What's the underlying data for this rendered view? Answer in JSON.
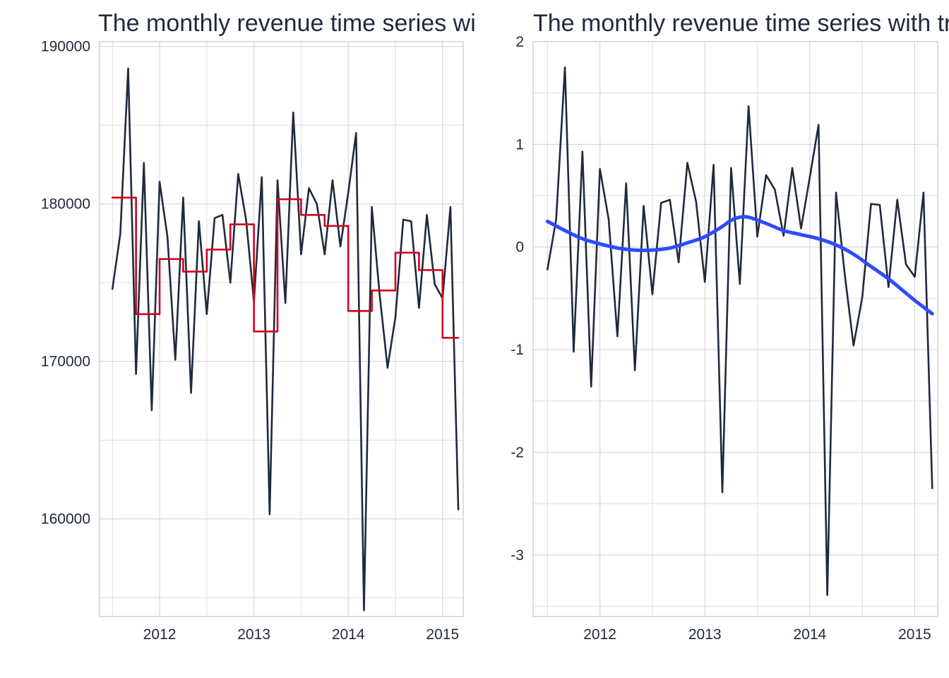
{
  "chart_data": [
    {
      "type": "line",
      "title": "The monthly revenue time series with moving average",
      "xlabel": "",
      "ylabel": "",
      "x_ticks": [
        "2012",
        "2013",
        "2014",
        "2015"
      ],
      "y_ticks": [
        160000,
        170000,
        180000,
        190000
      ],
      "xlim": [
        "2011-05-12",
        "2015-03-20"
      ],
      "ylim": [
        153800,
        190300
      ],
      "grid": true,
      "legend": "none",
      "series": [
        {
          "color": "#1f2a3a",
          "points": [
            [
              "2011-07",
              174600
            ],
            [
              "2011-08",
              178100
            ],
            [
              "2011-09",
              188600
            ],
            [
              "2011-10",
              169200
            ],
            [
              "2011-11",
              182600
            ],
            [
              "2011-12",
              166900
            ],
            [
              "2012-01",
              181400
            ],
            [
              "2012-02",
              177900
            ],
            [
              "2012-03",
              170100
            ],
            [
              "2012-04",
              180400
            ],
            [
              "2012-05",
              168000
            ],
            [
              "2012-06",
              178900
            ],
            [
              "2012-07",
              173000
            ],
            [
              "2012-08",
              179100
            ],
            [
              "2012-09",
              179300
            ],
            [
              "2012-10",
              175000
            ],
            [
              "2012-11",
              181900
            ],
            [
              "2012-12",
              179000
            ],
            [
              "2013-01",
              173800
            ],
            [
              "2013-02",
              181700
            ],
            [
              "2013-03",
              160300
            ],
            [
              "2013-04",
              181500
            ],
            [
              "2013-05",
              173700
            ],
            [
              "2013-06",
              185800
            ],
            [
              "2013-07",
              176800
            ],
            [
              "2013-08",
              181000
            ],
            [
              "2013-09",
              180000
            ],
            [
              "2013-10",
              176800
            ],
            [
              "2013-11",
              181500
            ],
            [
              "2013-12",
              177300
            ],
            [
              "2014-01",
              180700
            ],
            [
              "2014-02",
              184500
            ],
            [
              "2014-03",
              154200
            ],
            [
              "2014-04",
              179800
            ],
            [
              "2014-05",
              174200
            ],
            [
              "2014-06",
              169600
            ],
            [
              "2014-07",
              172800
            ],
            [
              "2014-08",
              179000
            ],
            [
              "2014-09",
              178900
            ],
            [
              "2014-10",
              173400
            ],
            [
              "2014-11",
              179300
            ],
            [
              "2014-12",
              174900
            ],
            [
              "2015-01",
              174000
            ],
            [
              "2015-02",
              179800
            ],
            [
              "2015-03",
              160600
            ]
          ]
        },
        {
          "color": "#d2001f",
          "step": true,
          "points": [
            [
              "2011-07",
              180400
            ],
            [
              "2011-08",
              180400
            ],
            [
              "2011-09",
              180400
            ],
            [
              "2011-10",
              173000
            ],
            [
              "2011-11",
              173000
            ],
            [
              "2011-12",
              173000
            ],
            [
              "2012-01",
              176500
            ],
            [
              "2012-02",
              176500
            ],
            [
              "2012-03",
              176500
            ],
            [
              "2012-04",
              175700
            ],
            [
              "2012-05",
              175700
            ],
            [
              "2012-06",
              175700
            ],
            [
              "2012-07",
              177100
            ],
            [
              "2012-08",
              177100
            ],
            [
              "2012-09",
              177100
            ],
            [
              "2012-10",
              178700
            ],
            [
              "2012-11",
              178700
            ],
            [
              "2012-12",
              178700
            ],
            [
              "2013-01",
              171900
            ],
            [
              "2013-02",
              171900
            ],
            [
              "2013-03",
              171900
            ],
            [
              "2013-04",
              180300
            ],
            [
              "2013-05",
              180300
            ],
            [
              "2013-06",
              180300
            ],
            [
              "2013-07",
              179300
            ],
            [
              "2013-08",
              179300
            ],
            [
              "2013-09",
              179300
            ],
            [
              "2013-10",
              178600
            ],
            [
              "2013-11",
              178600
            ],
            [
              "2013-12",
              178600
            ],
            [
              "2014-01",
              173200
            ],
            [
              "2014-02",
              173200
            ],
            [
              "2014-03",
              173200
            ],
            [
              "2014-04",
              174500
            ],
            [
              "2014-05",
              174500
            ],
            [
              "2014-06",
              174500
            ],
            [
              "2014-07",
              176900
            ],
            [
              "2014-08",
              176900
            ],
            [
              "2014-09",
              176900
            ],
            [
              "2014-10",
              175800
            ],
            [
              "2014-11",
              175800
            ],
            [
              "2014-12",
              175800
            ],
            [
              "2015-01",
              171500
            ],
            [
              "2015-02",
              171500
            ],
            [
              "2015-03",
              171500
            ]
          ]
        }
      ]
    },
    {
      "type": "line",
      "title": "The monthly revenue time series with trend",
      "xlabel": "",
      "ylabel": "",
      "x_ticks": [
        "2012",
        "2013",
        "2014",
        "2015"
      ],
      "y_ticks": [
        -3,
        -2,
        -1,
        0,
        1,
        2
      ],
      "xlim": [
        "2011-05-12",
        "2015-03-20"
      ],
      "ylim": [
        -3.6,
        2.0
      ],
      "grid": true,
      "legend": "none",
      "series": [
        {
          "color": "#1f2a3a",
          "points": [
            [
              "2011-07",
              -0.22
            ],
            [
              "2011-08",
              0.27
            ],
            [
              "2011-09",
              1.75
            ],
            [
              "2011-10",
              -1.02
            ],
            [
              "2011-11",
              0.93
            ],
            [
              "2011-12",
              -1.36
            ],
            [
              "2012-01",
              0.76
            ],
            [
              "2012-02",
              0.27
            ],
            [
              "2012-03",
              -0.87
            ],
            [
              "2012-04",
              0.62
            ],
            [
              "2012-05",
              -1.2
            ],
            [
              "2012-06",
              0.4
            ],
            [
              "2012-07",
              -0.46
            ],
            [
              "2012-08",
              0.43
            ],
            [
              "2012-09",
              0.46
            ],
            [
              "2012-10",
              -0.15
            ],
            [
              "2012-11",
              0.82
            ],
            [
              "2012-12",
              0.44
            ],
            [
              "2013-01",
              -0.34
            ],
            [
              "2013-02",
              0.8
            ],
            [
              "2013-03",
              -2.39
            ],
            [
              "2013-04",
              0.77
            ],
            [
              "2013-05",
              -0.36
            ],
            [
              "2013-06",
              1.37
            ],
            [
              "2013-07",
              0.1
            ],
            [
              "2013-08",
              0.7
            ],
            [
              "2013-09",
              0.56
            ],
            [
              "2013-10",
              0.11
            ],
            [
              "2013-11",
              0.77
            ],
            [
              "2013-12",
              0.18
            ],
            [
              "2014-01",
              0.68
            ],
            [
              "2014-02",
              1.19
            ],
            [
              "2014-03",
              -3.39
            ],
            [
              "2014-04",
              0.53
            ],
            [
              "2014-05",
              -0.27
            ],
            [
              "2014-06",
              -0.96
            ],
            [
              "2014-07",
              -0.49
            ],
            [
              "2014-08",
              0.42
            ],
            [
              "2014-09",
              0.41
            ],
            [
              "2014-10",
              -0.39
            ],
            [
              "2014-11",
              0.46
            ],
            [
              "2014-12",
              -0.17
            ],
            [
              "2015-01",
              -0.29
            ],
            [
              "2015-02",
              0.53
            ],
            [
              "2015-03",
              -2.35
            ]
          ]
        },
        {
          "color": "#2e4bff",
          "smooth": true,
          "points": [
            [
              "2011-07",
              0.25
            ],
            [
              "2011-09",
              0.16
            ],
            [
              "2011-11",
              0.08
            ],
            [
              "2012-01",
              0.03
            ],
            [
              "2012-03",
              -0.01
            ],
            [
              "2012-05",
              -0.03
            ],
            [
              "2012-07",
              -0.03
            ],
            [
              "2012-09",
              -0.01
            ],
            [
              "2012-11",
              0.04
            ],
            [
              "2013-01",
              0.1
            ],
            [
              "2013-03",
              0.2
            ],
            [
              "2013-04",
              0.26
            ],
            [
              "2013-05",
              0.29
            ],
            [
              "2013-06",
              0.29
            ],
            [
              "2013-08",
              0.23
            ],
            [
              "2013-10",
              0.16
            ],
            [
              "2013-12",
              0.12
            ],
            [
              "2014-02",
              0.08
            ],
            [
              "2014-04",
              0.02
            ],
            [
              "2014-06",
              -0.07
            ],
            [
              "2014-08",
              -0.19
            ],
            [
              "2014-10",
              -0.31
            ],
            [
              "2014-12",
              -0.45
            ],
            [
              "2015-01",
              -0.52
            ],
            [
              "2015-03",
              -0.65
            ]
          ]
        }
      ]
    }
  ]
}
